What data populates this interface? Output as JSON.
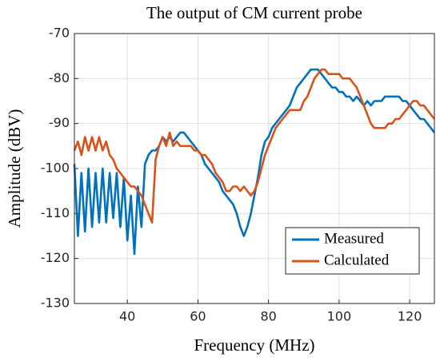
{
  "chart_data": {
    "type": "line",
    "title": "The output of CM current probe",
    "x_label": "Frequency (MHz)",
    "y_label": "Amplitude (dBV)",
    "x": [
      25,
      26,
      27,
      28,
      29,
      30,
      31,
      32,
      33,
      34,
      35,
      36,
      37,
      38,
      39,
      40,
      41,
      42,
      43,
      44,
      45,
      46,
      47,
      48,
      49,
      50,
      51,
      52,
      53,
      54,
      55,
      56,
      57,
      58,
      59,
      60,
      61,
      62,
      63,
      64,
      65,
      66,
      67,
      68,
      69,
      70,
      71,
      72,
      73,
      74,
      75,
      76,
      77,
      78,
      79,
      80,
      81,
      82,
      83,
      84,
      85,
      86,
      87,
      88,
      89,
      90,
      91,
      92,
      93,
      94,
      95,
      96,
      97,
      98,
      99,
      100,
      101,
      102,
      103,
      104,
      105,
      106,
      107,
      108,
      109,
      110,
      111,
      112,
      113,
      114,
      115,
      116,
      117,
      118,
      119,
      120,
      121,
      122,
      123,
      124,
      125,
      126,
      127
    ],
    "series": [
      {
        "name": "Measured",
        "color": "#0072bd",
        "values": [
          -99,
          -115,
          -101,
          -114,
          -100,
          -113,
          -101,
          -112,
          -100,
          -112,
          -101,
          -111,
          -101,
          -113,
          -102,
          -116,
          -106,
          -119,
          -104,
          -113,
          -99,
          -97,
          -96,
          -96,
          -95,
          -93,
          -94,
          -93,
          -94,
          -93,
          -92,
          -92,
          -93,
          -94,
          -95,
          -96,
          -97,
          -99,
          -100,
          -101,
          -102,
          -103,
          -105,
          -106,
          -107,
          -108,
          -110,
          -113,
          -115,
          -113,
          -110,
          -106,
          -102,
          -97,
          -94,
          -93,
          -91,
          -90,
          -89,
          -88,
          -87,
          -86,
          -84,
          -82,
          -81,
          -80,
          -79,
          -78,
          -78,
          -78,
          -79,
          -80,
          -81,
          -82,
          -82,
          -83,
          -83,
          -84,
          -84,
          -85,
          -84,
          -85,
          -86,
          -85,
          -86,
          -85,
          -85,
          -85,
          -84,
          -84,
          -84,
          -84,
          -84,
          -85,
          -85,
          -86,
          -87,
          -88,
          -89,
          -89,
          -90,
          -91,
          -92
        ]
      },
      {
        "name": "Calculated",
        "color": "#d95319",
        "values": [
          -96,
          -94,
          -97,
          -93,
          -96,
          -93,
          -96,
          -93,
          -96,
          -94,
          -97,
          -98,
          -100,
          -101,
          -102,
          -103,
          -104,
          -104,
          -105,
          -106,
          -108,
          -110,
          -112,
          -98,
          -95,
          -93,
          -95,
          -92,
          -95,
          -94,
          -95,
          -95,
          -95,
          -95,
          -96,
          -96,
          -97,
          -97,
          -98,
          -99,
          -101,
          -102,
          -103,
          -105,
          -105,
          -104,
          -104,
          -105,
          -104,
          -105,
          -106,
          -105,
          -103,
          -100,
          -97,
          -95,
          -93,
          -91,
          -90,
          -89,
          -88,
          -87,
          -87,
          -87,
          -87,
          -85,
          -84,
          -82,
          -80,
          -79,
          -78,
          -78,
          -79,
          -79,
          -79,
          -79,
          -80,
          -80,
          -80,
          -81,
          -82,
          -84,
          -86,
          -88,
          -90,
          -91,
          -91,
          -91,
          -91,
          -90,
          -90,
          -89,
          -89,
          -88,
          -87,
          -86,
          -85,
          -85,
          -86,
          -86,
          -87,
          -88,
          -89
        ]
      }
    ],
    "xlim": [
      25,
      127
    ],
    "xticks": [
      40,
      60,
      80,
      100,
      120
    ],
    "ylim": [
      -130,
      -70
    ],
    "yticks": [
      -130,
      -120,
      -110,
      -100,
      -90,
      -80,
      -70
    ],
    "grid": true,
    "legend": "lower right"
  }
}
